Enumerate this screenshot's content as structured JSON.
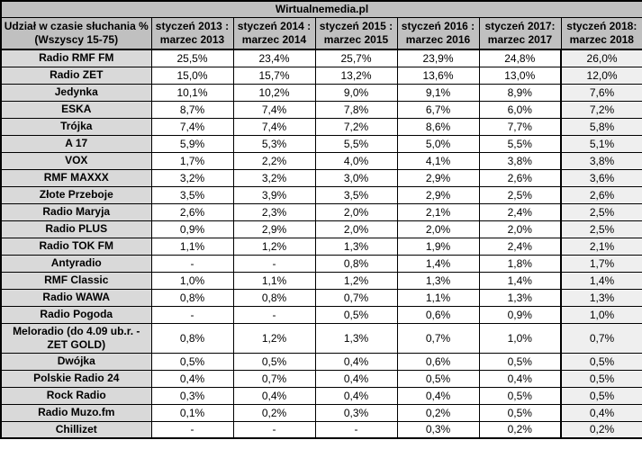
{
  "chart_data": {
    "type": "table",
    "title": "Wirtualnemedia.pl",
    "corner_header": "Udział w czasie słuchania %\n(Wszyscy 15-75)",
    "column_headers": [
      "styczeń 2013 :\nmarzec 2013",
      "styczeń 2014 :\nmarzec 2014",
      "styczeń 2015 :\nmarzec 2015",
      "styczeń 2016 :\nmarzec 2016",
      "styczeń 2017:\nmarzec 2017",
      "styczeń 2018:\nmarzec 2018"
    ],
    "rows": [
      {
        "station": "Radio RMF FM",
        "values": [
          "25,5%",
          "23,4%",
          "25,7%",
          "23,9%",
          "24,8%",
          "26,0%"
        ]
      },
      {
        "station": "Radio ZET",
        "values": [
          "15,0%",
          "15,7%",
          "13,2%",
          "13,6%",
          "13,0%",
          "12,0%"
        ]
      },
      {
        "station": "Jedynka",
        "values": [
          "10,1%",
          "10,2%",
          "9,0%",
          "9,1%",
          "8,9%",
          "7,6%"
        ]
      },
      {
        "station": "ESKA",
        "values": [
          "8,7%",
          "7,4%",
          "7,8%",
          "6,7%",
          "6,0%",
          "7,2%"
        ]
      },
      {
        "station": "Trójka",
        "values": [
          "7,4%",
          "7,4%",
          "7,2%",
          "8,6%",
          "7,7%",
          "5,8%"
        ]
      },
      {
        "station": "A 17",
        "values": [
          "5,9%",
          "5,3%",
          "5,5%",
          "5,0%",
          "5,5%",
          "5,1%"
        ]
      },
      {
        "station": "VOX",
        "values": [
          "1,7%",
          "2,2%",
          "4,0%",
          "4,1%",
          "3,8%",
          "3,8%"
        ]
      },
      {
        "station": "RMF MAXXX",
        "values": [
          "3,2%",
          "3,2%",
          "3,0%",
          "2,9%",
          "2,6%",
          "3,6%"
        ]
      },
      {
        "station": "Złote Przeboje",
        "values": [
          "3,5%",
          "3,9%",
          "3,5%",
          "2,9%",
          "2,5%",
          "2,6%"
        ]
      },
      {
        "station": "Radio Maryja",
        "values": [
          "2,6%",
          "2,3%",
          "2,0%",
          "2,1%",
          "2,4%",
          "2,5%"
        ]
      },
      {
        "station": "Radio PLUS",
        "values": [
          "0,9%",
          "2,9%",
          "2,0%",
          "2,0%",
          "2,0%",
          "2,5%"
        ]
      },
      {
        "station": "Radio TOK FM",
        "values": [
          "1,1%",
          "1,2%",
          "1,3%",
          "1,9%",
          "2,4%",
          "2,1%"
        ]
      },
      {
        "station": "Antyradio",
        "values": [
          "-",
          "-",
          "0,8%",
          "1,4%",
          "1,8%",
          "1,7%"
        ]
      },
      {
        "station": "RMF Classic",
        "values": [
          "1,0%",
          "1,1%",
          "1,2%",
          "1,3%",
          "1,4%",
          "1,4%"
        ]
      },
      {
        "station": "Radio WAWA",
        "values": [
          "0,8%",
          "0,8%",
          "0,7%",
          "1,1%",
          "1,3%",
          "1,3%"
        ]
      },
      {
        "station": "Radio Pogoda",
        "values": [
          "-",
          "-",
          "0,5%",
          "0,6%",
          "0,9%",
          "1,0%"
        ]
      },
      {
        "station": "Meloradio (do 4.09 ub.r. -\nZET GOLD)",
        "values": [
          "0,8%",
          "1,2%",
          "1,3%",
          "0,7%",
          "1,0%",
          "0,7%"
        ]
      },
      {
        "station": "Dwójka",
        "values": [
          "0,5%",
          "0,5%",
          "0,4%",
          "0,6%",
          "0,5%",
          "0,5%"
        ]
      },
      {
        "station": "Polskie Radio 24",
        "values": [
          "0,4%",
          "0,7%",
          "0,4%",
          "0,5%",
          "0,4%",
          "0,5%"
        ]
      },
      {
        "station": "Rock Radio",
        "values": [
          "0,3%",
          "0,4%",
          "0,4%",
          "0,4%",
          "0,5%",
          "0,5%"
        ]
      },
      {
        "station": "Radio Muzo.fm",
        "values": [
          "0,1%",
          "0,2%",
          "0,3%",
          "0,2%",
          "0,5%",
          "0,4%"
        ]
      },
      {
        "station": "Chillizet",
        "values": [
          "-",
          "-",
          "-",
          "0,3%",
          "0,2%",
          "0,2%"
        ]
      }
    ]
  },
  "colors": {
    "header_bg": "#C0C0C0",
    "station_col_bg": "#D9D9D9",
    "last_col_bg": "#EFEFEF",
    "border": "#000000"
  }
}
